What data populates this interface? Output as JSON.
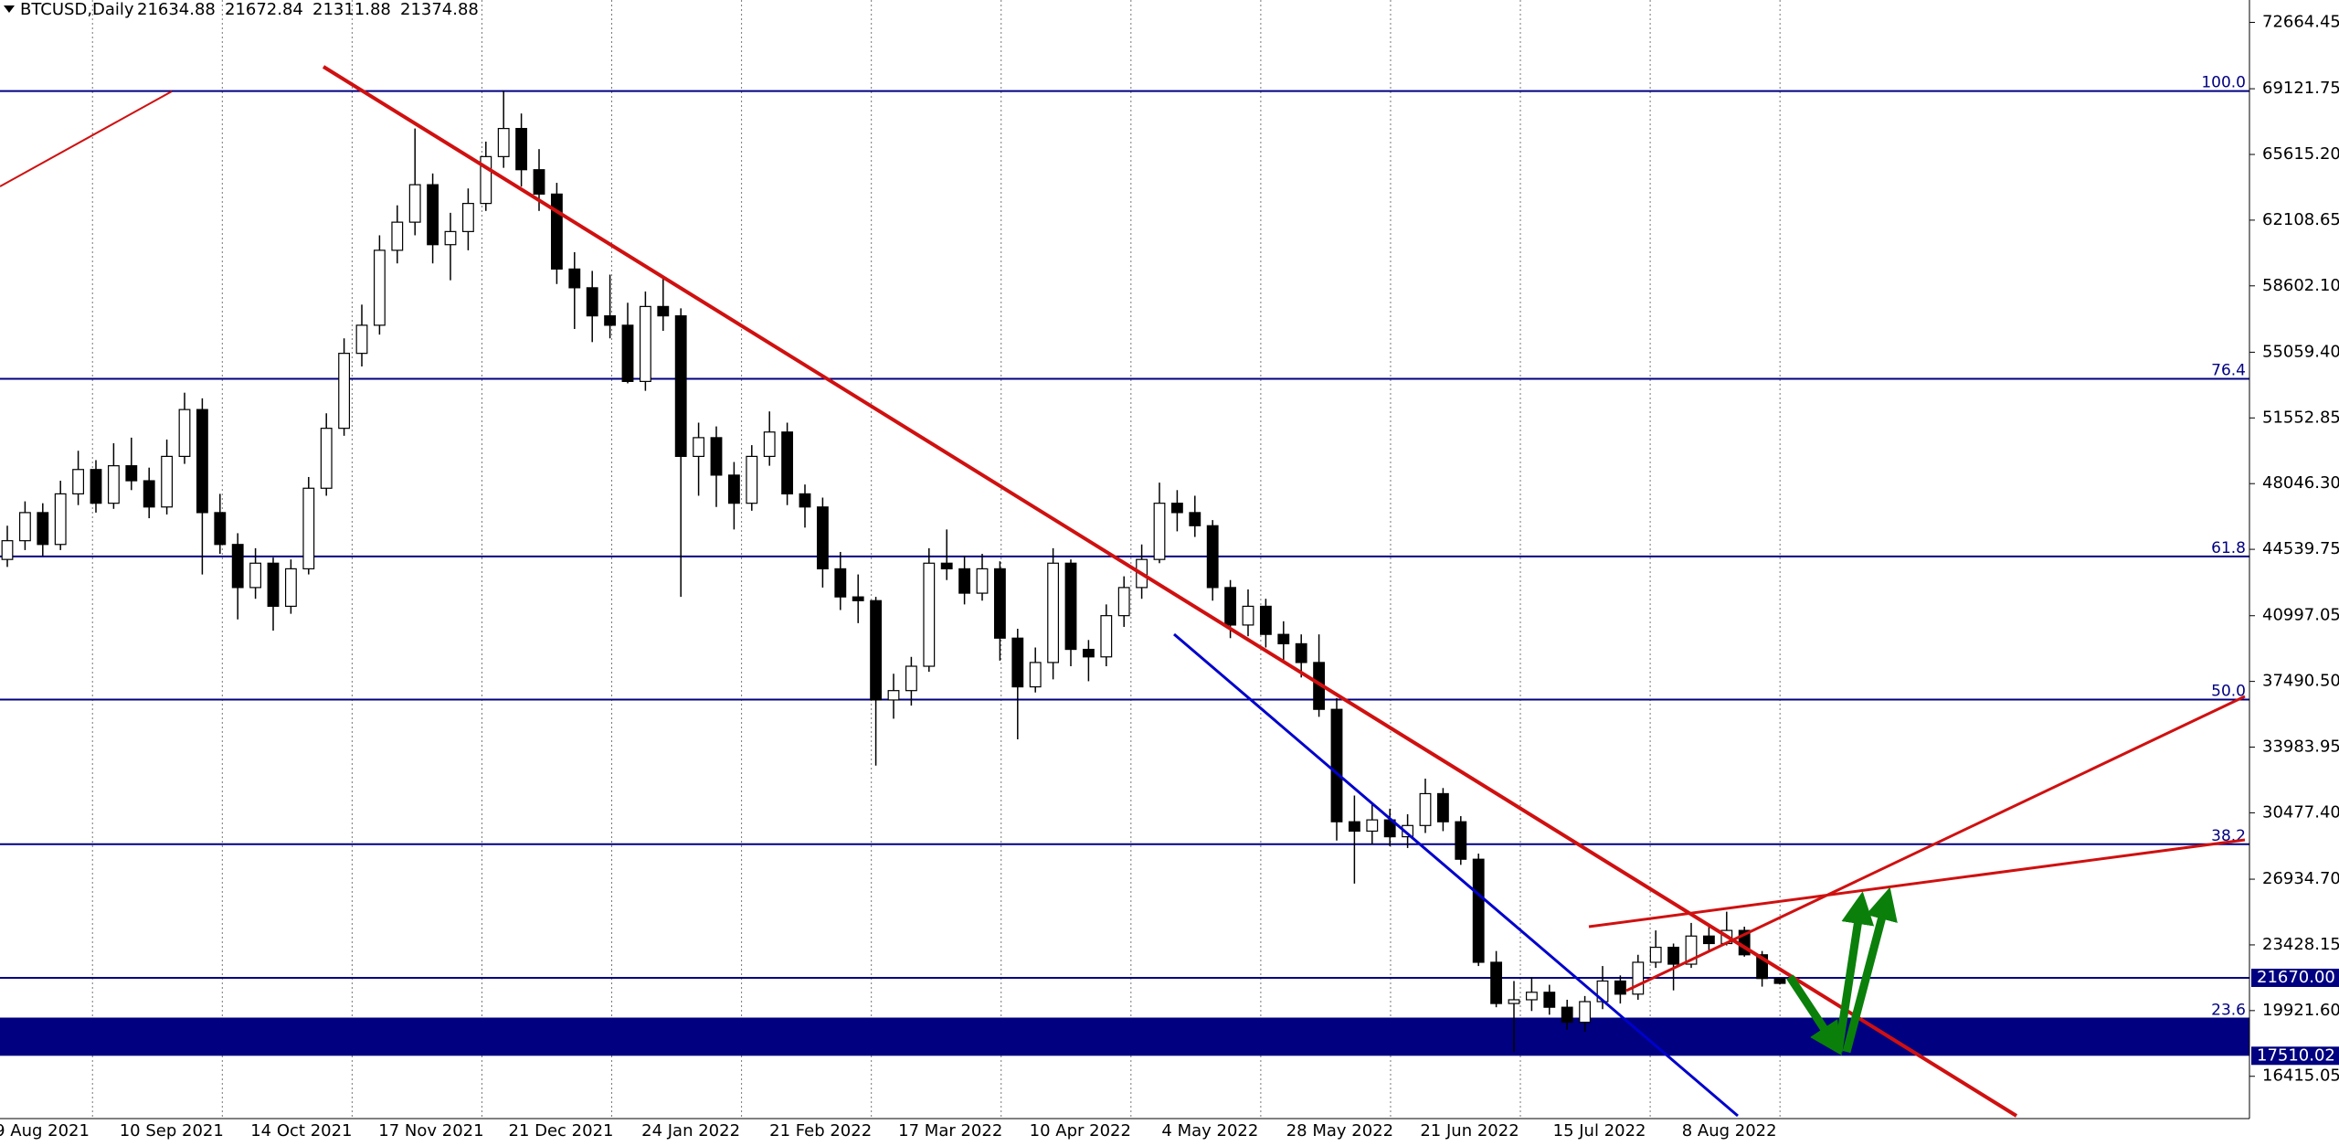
{
  "chart_data": {
    "type": "candlestick",
    "header": {
      "symbol": "BTCUSD,Daily",
      "ohlc": [
        21634.88,
        21672.84,
        21311.88,
        21374.88
      ]
    },
    "ylim": [
      14158,
      73858
    ],
    "yticks": [
      72664.45,
      69121.75,
      {
        "value": 65615.2,
        "label": "65615.20"
      },
      62108.65,
      {
        "value": 58602.1,
        "label": "58602.10"
      },
      {
        "value": 55059.4,
        "label": "55059.40"
      },
      51552.85,
      {
        "value": 48046.3,
        "label": "48046.30"
      },
      44539.75,
      40997.05,
      {
        "value": 37490.5,
        "label": "37490.50"
      },
      33983.95,
      {
        "value": 30477.4,
        "label": "30477.40"
      },
      {
        "value": 26934.7,
        "label": "26934.70"
      },
      23428.15,
      {
        "value": 19921.6,
        "label": "19921.60"
      },
      16415.05
    ],
    "x_labels": [
      "9 Aug 2021",
      "10 Sep 2021",
      "14 Oct 2021",
      "17 Nov 2021",
      "21 Dec 2021",
      "24 Jan 2022",
      "21 Feb 2022",
      "17 Mar 2022",
      "10 Apr 2022",
      "4 May 2022",
      "28 May 2022",
      "21 Jun 2022",
      "15 Jul 2022",
      "8 Aug 2022"
    ],
    "fib_levels": [
      {
        "label": "100.0",
        "price": 69000
      },
      {
        "label": "76.4",
        "price": 53640
      },
      {
        "label": "61.8",
        "price": 44160
      },
      {
        "label": "50.0",
        "price": 36520
      },
      {
        "label": "38.2",
        "price": 28800
      },
      {
        "label": "23.6",
        "price": 19500
      }
    ],
    "price_line": {
      "value": 21670,
      "label": "21670.00"
    },
    "band": {
      "top": 19500,
      "bottom": {
        "value": 17510.02,
        "label": "17510.02"
      }
    },
    "line_color": "#000080",
    "candles": [
      [
        44000,
        45800,
        43600,
        45000
      ],
      [
        45000,
        47100,
        44500,
        46500
      ],
      [
        46500,
        47000,
        44200,
        44800
      ],
      [
        44800,
        48200,
        44500,
        47500
      ],
      [
        47500,
        49800,
        46900,
        48800
      ],
      [
        48800,
        49300,
        46500,
        47000
      ],
      [
        47000,
        50200,
        46700,
        49000
      ],
      [
        49000,
        50500,
        47700,
        48200
      ],
      [
        48200,
        48900,
        46200,
        46800
      ],
      [
        46800,
        50400,
        46400,
        49500
      ],
      [
        49500,
        52900,
        49100,
        52000
      ],
      [
        52000,
        52600,
        43200,
        46500
      ],
      [
        46500,
        47500,
        44300,
        44800
      ],
      [
        44800,
        45400,
        40800,
        42500
      ],
      [
        42500,
        44600,
        41900,
        43800
      ],
      [
        43800,
        44100,
        40200,
        41500
      ],
      [
        41500,
        44000,
        41100,
        43500
      ],
      [
        43500,
        48400,
        43200,
        47800
      ],
      [
        47800,
        51800,
        47400,
        51000
      ],
      [
        51000,
        55800,
        50600,
        55000
      ],
      [
        55000,
        57600,
        54300,
        56500
      ],
      [
        56500,
        61300,
        56000,
        60500
      ],
      [
        60500,
        62900,
        59800,
        62000
      ],
      [
        62000,
        67000,
        61300,
        64000
      ],
      [
        64000,
        64600,
        59800,
        60800
      ],
      [
        60800,
        62500,
        58900,
        61500
      ],
      [
        61500,
        63800,
        60500,
        63000
      ],
      [
        63000,
        66300,
        62600,
        65500
      ],
      [
        65500,
        69000,
        64900,
        67000
      ],
      [
        67000,
        67800,
        63900,
        64800
      ],
      [
        64800,
        65900,
        62600,
        63500
      ],
      [
        63500,
        64100,
        58700,
        59500
      ],
      [
        59500,
        60400,
        56300,
        58500
      ],
      [
        58500,
        59400,
        55600,
        57000
      ],
      [
        57000,
        59200,
        55800,
        56500
      ],
      [
        56500,
        57700,
        53400,
        53500
      ],
      [
        53500,
        58300,
        53000,
        57500
      ],
      [
        57500,
        59000,
        56200,
        57000
      ],
      [
        57000,
        57400,
        42000,
        49500
      ],
      [
        49500,
        51300,
        47400,
        50500
      ],
      [
        50500,
        51100,
        46800,
        48500
      ],
      [
        48500,
        49200,
        45600,
        47000
      ],
      [
        47000,
        50100,
        46600,
        49500
      ],
      [
        49500,
        51900,
        49000,
        50800
      ],
      [
        50800,
        51300,
        46900,
        47500
      ],
      [
        47500,
        48000,
        45700,
        46800
      ],
      [
        46800,
        47300,
        42500,
        43500
      ],
      [
        43500,
        44400,
        41300,
        42000
      ],
      [
        42000,
        43200,
        40600,
        41800
      ],
      [
        41800,
        42000,
        33000,
        36500
      ],
      [
        36500,
        37900,
        35500,
        37000
      ],
      [
        37000,
        38800,
        36200,
        38300
      ],
      [
        38300,
        44600,
        38000,
        43800
      ],
      [
        43800,
        45600,
        42900,
        43500
      ],
      [
        43500,
        44200,
        41600,
        42200
      ],
      [
        42200,
        44300,
        41800,
        43500
      ],
      [
        43500,
        43900,
        38600,
        39800
      ],
      [
        39800,
        40300,
        34400,
        37200
      ],
      [
        37200,
        39300,
        36900,
        38500
      ],
      [
        38500,
        44600,
        37600,
        43800
      ],
      [
        43800,
        44000,
        38300,
        39200
      ],
      [
        39200,
        39700,
        37500,
        38800
      ],
      [
        38800,
        41600,
        38300,
        41000
      ],
      [
        41000,
        43100,
        40400,
        42500
      ],
      [
        42500,
        44800,
        41900,
        44000
      ],
      [
        44000,
        48100,
        43800,
        47000
      ],
      [
        47000,
        47700,
        45500,
        46500
      ],
      [
        46500,
        47400,
        45200,
        45800
      ],
      [
        45800,
        46100,
        41800,
        42500
      ],
      [
        42500,
        42900,
        39800,
        40500
      ],
      [
        40500,
        42400,
        39900,
        41500
      ],
      [
        41500,
        41900,
        39300,
        40000
      ],
      [
        40000,
        40700,
        38600,
        39500
      ],
      [
        39500,
        40000,
        37700,
        38500
      ],
      [
        38500,
        40000,
        35600,
        36000
      ],
      [
        36000,
        36600,
        29000,
        30000
      ],
      [
        30000,
        31400,
        26700,
        29500
      ],
      [
        29500,
        31000,
        28800,
        30100
      ],
      [
        30100,
        30700,
        28700,
        29200
      ],
      [
        29200,
        30400,
        28600,
        29800
      ],
      [
        29800,
        32300,
        29400,
        31500
      ],
      [
        31500,
        31800,
        29500,
        30000
      ],
      [
        30000,
        30300,
        27700,
        28000
      ],
      [
        28000,
        28300,
        22300,
        22500
      ],
      [
        22500,
        23100,
        20100,
        20300
      ],
      [
        20300,
        21500,
        17700,
        20500
      ],
      [
        20500,
        21700,
        19900,
        20900
      ],
      [
        20900,
        21300,
        19700,
        20100
      ],
      [
        20100,
        20500,
        18900,
        19300
      ],
      [
        19300,
        20700,
        18800,
        20400
      ],
      [
        20400,
        22300,
        20000,
        21500
      ],
      [
        21500,
        21800,
        20300,
        20800
      ],
      [
        20800,
        22900,
        20500,
        22500
      ],
      [
        22500,
        24200,
        22200,
        23300
      ],
      [
        23300,
        23500,
        21000,
        22400
      ],
      [
        22400,
        24600,
        22200,
        23900
      ],
      [
        23900,
        24400,
        23100,
        23500
      ],
      [
        23500,
        25200,
        23400,
        24200
      ],
      [
        24200,
        24400,
        22800,
        22900
      ],
      [
        22900,
        23100,
        21200,
        21634.88
      ],
      [
        21634.88,
        21672.84,
        21311.88,
        21374.88
      ]
    ]
  }
}
